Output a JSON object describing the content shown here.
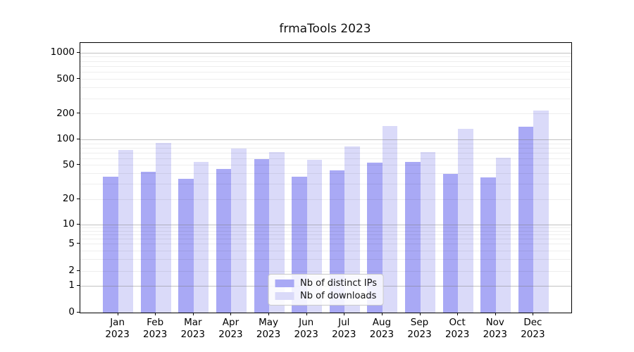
{
  "chart": {
    "title": "frmaTools 2023",
    "chart_data": {
      "type": "bar",
      "categories": [
        "Jan",
        "Feb",
        "Mar",
        "Apr",
        "May",
        "Jun",
        "Jul",
        "Aug",
        "Sep",
        "Oct",
        "Nov",
        "Dec"
      ],
      "category_year": "2023",
      "series": [
        {
          "name": "Nb of distinct IPs",
          "color": "#a9a9f5",
          "values": [
            37,
            42,
            35,
            45,
            59,
            37,
            44,
            54,
            55,
            40,
            36,
            142
          ]
        },
        {
          "name": "Nb of downloads",
          "color": "#dadaf9",
          "values": [
            76,
            91,
            55,
            79,
            71,
            58,
            83,
            145,
            71,
            133,
            62,
            219
          ]
        }
      ],
      "y_ticks": [
        0,
        1,
        2,
        5,
        10,
        20,
        50,
        100,
        200,
        500,
        1000
      ],
      "y_scale": "log-like with 0 baseline",
      "ylim": [
        0,
        1300
      ],
      "grid": "horizontal, major at decades, minor at 2-9 subdivisions",
      "legend_position": "lower center"
    }
  }
}
